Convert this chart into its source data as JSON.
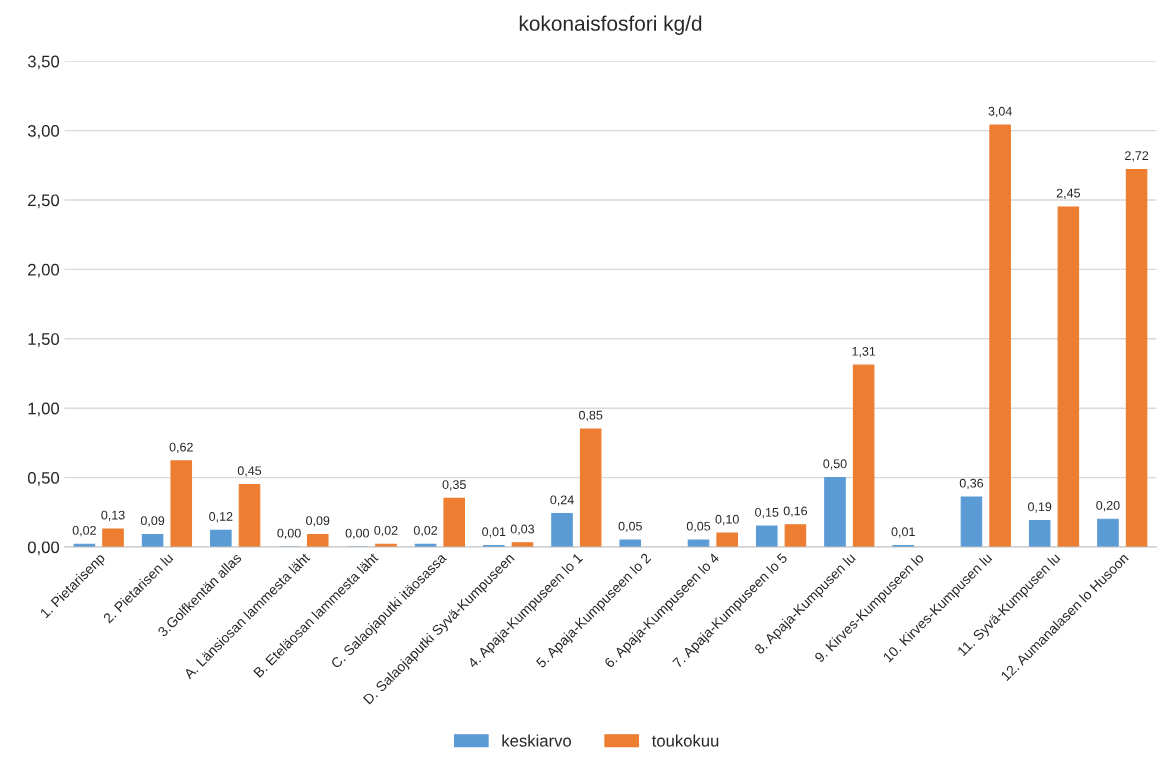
{
  "chart_data": {
    "type": "bar",
    "title": "kokonaisfosfori kg/d",
    "categories": [
      "1. Pietarisenp",
      "2. Pietarisen lu",
      "3.Golfkentän allas",
      "A. Länsiosan lammesta läht",
      "B. Eteläosan lammesta läht",
      "C. Salaojaputki itäosassa",
      "D. Salaojaputki Syvä-Kumpuseen",
      "4. Apaja-Kumpuseen lo 1",
      "5. Apaja-Kumpuseen lo 2",
      "6. Apaja-Kumpuseen lo 4",
      "7. Apaja-Kumpuseen lo 5",
      "8. Apaja-Kumpusen lu",
      "9. Kirves-Kumpuseen lo",
      "10. Kirves-Kumpusen lu",
      "11. Syvä-Kumpusen lu",
      "12. Aumanalasen lo Husoon"
    ],
    "series": [
      {
        "name": "keskiarvo",
        "color": "#5b9bd5",
        "values": [
          0.02,
          0.09,
          0.12,
          0.0,
          0.0,
          0.02,
          0.01,
          0.24,
          0.05,
          0.05,
          0.15,
          0.5,
          0.01,
          0.36,
          0.19,
          0.2
        ],
        "value_labels": [
          "0,02",
          "0,09",
          "0,12",
          "0,00",
          "0,00",
          "0,02",
          "0,01",
          "0,24",
          "0,05",
          "0,05",
          "0,15",
          "0,50",
          "0,01",
          "0,36",
          "0,19",
          "0,20"
        ]
      },
      {
        "name": "toukokuu",
        "color": "#ed7d31",
        "values": [
          0.13,
          0.62,
          0.45,
          0.09,
          0.02,
          0.35,
          0.03,
          0.85,
          null,
          0.1,
          0.16,
          1.31,
          null,
          3.04,
          2.45,
          2.72
        ],
        "value_labels": [
          "0,13",
          "0,62",
          "0,45",
          "0,09",
          "0,02",
          "0,35",
          "0,03",
          "0,85",
          null,
          "0,10",
          "0,16",
          "1,31",
          null,
          "3,04",
          "2,45",
          "2,72"
        ]
      }
    ],
    "ylim": [
      0,
      3.5
    ],
    "yticks": [
      {
        "value": 0,
        "label": "0,00"
      },
      {
        "value": 0.5,
        "label": "0,50"
      },
      {
        "value": 1,
        "label": "1,00"
      },
      {
        "value": 1.5,
        "label": "1,50"
      },
      {
        "value": 2,
        "label": "2,00"
      },
      {
        "value": 2.5,
        "label": "2,50"
      },
      {
        "value": 3,
        "label": "3,00"
      },
      {
        "value": 3.5,
        "label": "3,50"
      }
    ],
    "grid": "y",
    "legend": "bottom"
  }
}
